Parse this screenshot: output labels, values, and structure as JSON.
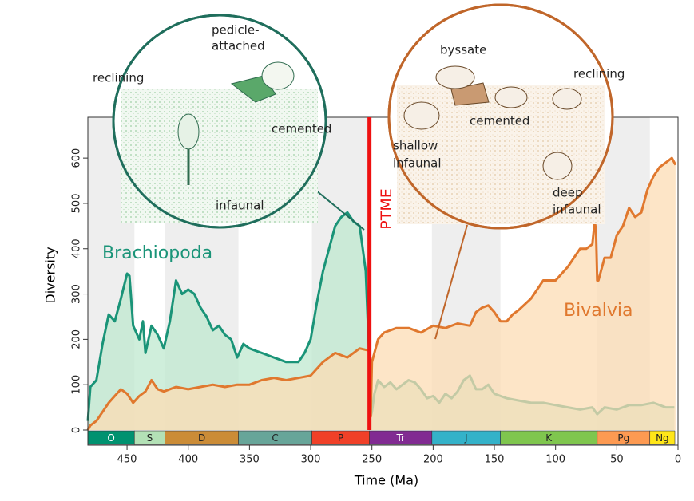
{
  "chart_data": {
    "type": "area",
    "xlabel": "Time (Ma)",
    "ylabel": "Diversity",
    "xlim": [
      482,
      0
    ],
    "ylim": [
      0,
      690
    ],
    "xticks": [
      450,
      400,
      350,
      300,
      250,
      200,
      150,
      100,
      50,
      0
    ],
    "yticks": [
      0,
      100,
      200,
      300,
      400,
      500,
      600
    ],
    "series": [
      {
        "name": "Brachiopoda",
        "color": "#1a9478",
        "fill": "#bfe8cf",
        "x": [
          482,
          480,
          475,
          470,
          465,
          460,
          455,
          450,
          448,
          445,
          440,
          437,
          435,
          430,
          425,
          420,
          415,
          410,
          405,
          400,
          395,
          390,
          385,
          380,
          375,
          370,
          365,
          360,
          355,
          350,
          345,
          340,
          330,
          320,
          310,
          305,
          300,
          295,
          290,
          285,
          280,
          275,
          270,
          265,
          260,
          255,
          252,
          251,
          250,
          248,
          245,
          240,
          235,
          230,
          225,
          220,
          215,
          210,
          205,
          200,
          195,
          190,
          185,
          180,
          175,
          170,
          165,
          160,
          155,
          150,
          145,
          140,
          130,
          120,
          110,
          100,
          90,
          80,
          70,
          66,
          60,
          50,
          40,
          30,
          20,
          10,
          3
        ],
        "values": [
          20,
          95,
          110,
          190,
          255,
          240,
          290,
          345,
          340,
          230,
          200,
          240,
          170,
          230,
          210,
          180,
          240,
          330,
          300,
          310,
          300,
          270,
          250,
          220,
          230,
          210,
          200,
          160,
          190,
          180,
          175,
          170,
          160,
          150,
          150,
          170,
          200,
          280,
          350,
          400,
          450,
          470,
          480,
          460,
          450,
          350,
          150,
          30,
          40,
          80,
          110,
          95,
          105,
          90,
          100,
          110,
          105,
          90,
          70,
          75,
          60,
          80,
          70,
          85,
          110,
          120,
          90,
          90,
          100,
          80,
          75,
          70,
          65,
          60,
          60,
          55,
          50,
          45,
          50,
          35,
          50,
          45,
          55,
          55,
          60,
          50,
          50
        ]
      },
      {
        "name": "Bivalvia",
        "color": "#e0782e",
        "fill": "#fcdcb4",
        "x": [
          482,
          480,
          475,
          470,
          465,
          460,
          455,
          450,
          445,
          440,
          435,
          430,
          425,
          420,
          410,
          400,
          390,
          380,
          370,
          360,
          350,
          340,
          330,
          320,
          310,
          300,
          290,
          280,
          270,
          260,
          252,
          251,
          250,
          245,
          240,
          230,
          220,
          210,
          200,
          190,
          180,
          170,
          165,
          160,
          155,
          150,
          145,
          140,
          135,
          130,
          120,
          110,
          100,
          90,
          80,
          75,
          70,
          68,
          67,
          66,
          65,
          60,
          55,
          50,
          45,
          40,
          35,
          30,
          25,
          20,
          15,
          10,
          5,
          2
        ],
        "values": [
          0,
          10,
          20,
          40,
          60,
          75,
          90,
          80,
          60,
          75,
          85,
          110,
          90,
          85,
          95,
          90,
          95,
          100,
          95,
          100,
          100,
          110,
          115,
          110,
          115,
          120,
          150,
          170,
          160,
          180,
          175,
          30,
          150,
          200,
          215,
          225,
          225,
          215,
          230,
          225,
          235,
          230,
          260,
          270,
          275,
          260,
          240,
          240,
          255,
          265,
          290,
          330,
          330,
          360,
          400,
          400,
          410,
          460,
          440,
          330,
          330,
          380,
          380,
          430,
          450,
          490,
          470,
          480,
          530,
          560,
          580,
          590,
          600,
          585
        ]
      }
    ],
    "periods": [
      {
        "name": "O",
        "start": 485,
        "end": 444,
        "color": "#009270"
      },
      {
        "name": "S",
        "start": 444,
        "end": 419,
        "color": "#b3e1b6"
      },
      {
        "name": "D",
        "start": 419,
        "end": 359,
        "color": "#cb8c37"
      },
      {
        "name": "C",
        "start": 359,
        "end": 299,
        "color": "#67a599"
      },
      {
        "name": "P",
        "start": 299,
        "end": 252,
        "color": "#f04028"
      },
      {
        "name": "Tr",
        "start": 252,
        "end": 201,
        "color": "#812b92"
      },
      {
        "name": "J",
        "start": 201,
        "end": 145,
        "color": "#34b2c9"
      },
      {
        "name": "K",
        "start": 145,
        "end": 66,
        "color": "#7fc64e"
      },
      {
        "name": "Pg",
        "start": 66,
        "end": 23,
        "color": "#fd9a52"
      },
      {
        "name": "Ng",
        "start": 23,
        "end": 2.6,
        "color": "#ffe619"
      }
    ],
    "event": {
      "label": "PTME",
      "x": 252,
      "color": "#ee1111"
    },
    "insets": [
      {
        "labels": [
          "reclining",
          "pedicle-",
          "attached",
          "cemented",
          "infaunal"
        ]
      },
      {
        "labels": [
          "byssate",
          "reclining",
          "cemented",
          "shallow",
          "infaunal",
          "deep",
          "infaunal"
        ]
      }
    ]
  }
}
